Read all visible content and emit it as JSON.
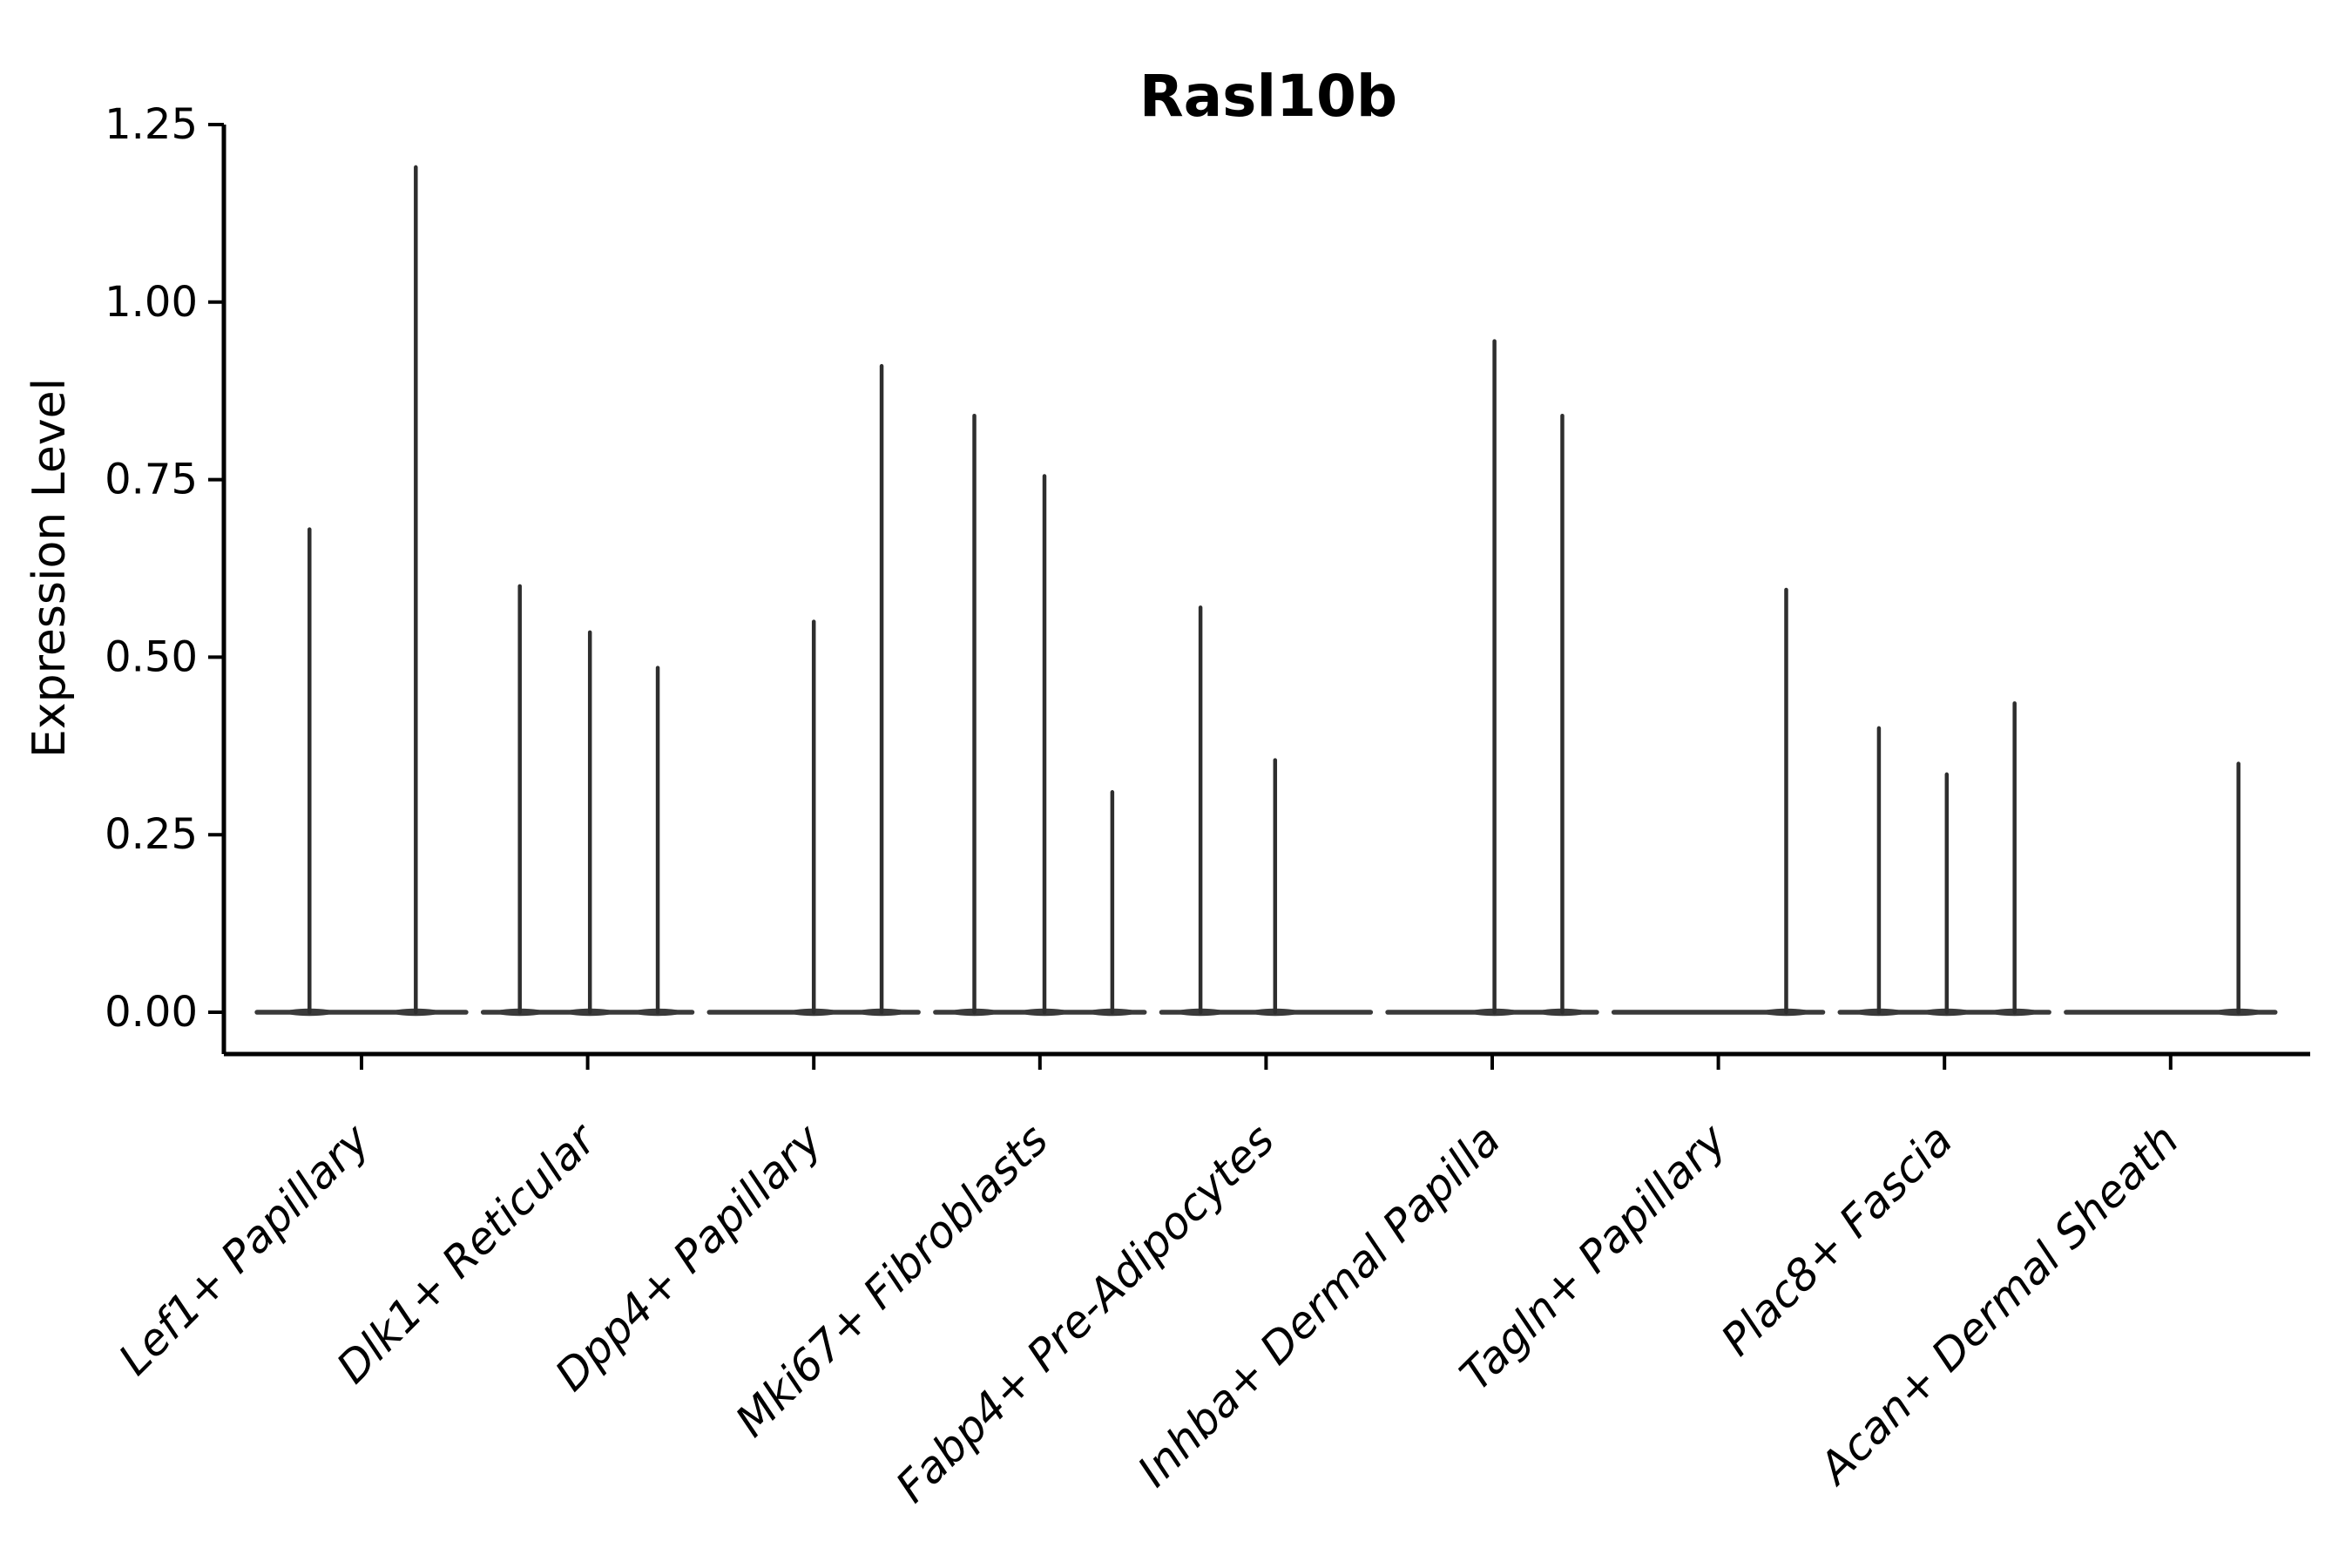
{
  "chart_data": {
    "type": "violin",
    "title": "Rasl10b",
    "ylabel": "Expression Level",
    "xlabel": "",
    "grid": false,
    "legend": null,
    "ylim": [
      -0.06,
      1.31
    ],
    "y_ticks": [
      0.0,
      0.25,
      0.5,
      0.75,
      1.0,
      1.25
    ],
    "y_tick_labels": [
      "0.00",
      "0.25",
      "0.50",
      "0.75",
      "1.00",
      "1.25"
    ],
    "categories": [
      "Lef1+ Papillary",
      "Dlk1+ Reticular",
      "Dpp4+ Papillary",
      "Mki67+ Fibroblasts",
      "Fabp4+ Pre-Adipocytes",
      "Inhba+ Dermal Papilla",
      "Tagln+ Papillary",
      "Plac8+ Fascia",
      "Acan+ Dermal Sheath"
    ],
    "violins": [
      {
        "category": "Lef1+ Papillary",
        "base_halfwidth": 0.462,
        "spikes": [
          {
            "dx": -0.23,
            "value": 0.68
          },
          {
            "dx": 0.24,
            "value": 1.19
          }
        ]
      },
      {
        "category": "Dlk1+ Reticular",
        "base_halfwidth": 0.462,
        "spikes": [
          {
            "dx": -0.3,
            "value": 0.6
          },
          {
            "dx": 0.01,
            "value": 0.535
          },
          {
            "dx": 0.31,
            "value": 0.485
          }
        ]
      },
      {
        "category": "Dpp4+ Papillary",
        "base_halfwidth": 0.462,
        "spikes": [
          {
            "dx": 0.0,
            "value": 0.55
          },
          {
            "dx": 0.3,
            "value": 0.91
          }
        ]
      },
      {
        "category": "Mki67+ Fibroblasts",
        "base_halfwidth": 0.462,
        "spikes": [
          {
            "dx": -0.29,
            "value": 0.84
          },
          {
            "dx": 0.02,
            "value": 0.755
          },
          {
            "dx": 0.32,
            "value": 0.31
          }
        ]
      },
      {
        "category": "Fabp4+ Pre-Adipocytes",
        "base_halfwidth": 0.462,
        "spikes": [
          {
            "dx": -0.29,
            "value": 0.57
          },
          {
            "dx": 0.04,
            "value": 0.355
          }
        ]
      },
      {
        "category": "Inhba+ Dermal Papilla",
        "base_halfwidth": 0.462,
        "spikes": [
          {
            "dx": 0.01,
            "value": 0.945
          },
          {
            "dx": 0.31,
            "value": 0.84
          }
        ]
      },
      {
        "category": "Tagln+ Papillary",
        "base_halfwidth": 0.462,
        "spikes": [
          {
            "dx": 0.3,
            "value": 0.595
          }
        ]
      },
      {
        "category": "Plac8+ Fascia",
        "base_halfwidth": 0.462,
        "spikes": [
          {
            "dx": -0.29,
            "value": 0.4
          },
          {
            "dx": 0.01,
            "value": 0.335
          },
          {
            "dx": 0.31,
            "value": 0.435
          }
        ]
      },
      {
        "category": "Acan+ Dermal Sheath",
        "base_halfwidth": 0.462,
        "spikes": [
          {
            "dx": 0.3,
            "value": 0.35
          }
        ]
      }
    ],
    "colors": {
      "violin_line": "#2e2e2e",
      "violin_base": "#3a3a3a",
      "axis": "#000000",
      "text": "#000000",
      "background": "#ffffff"
    }
  }
}
